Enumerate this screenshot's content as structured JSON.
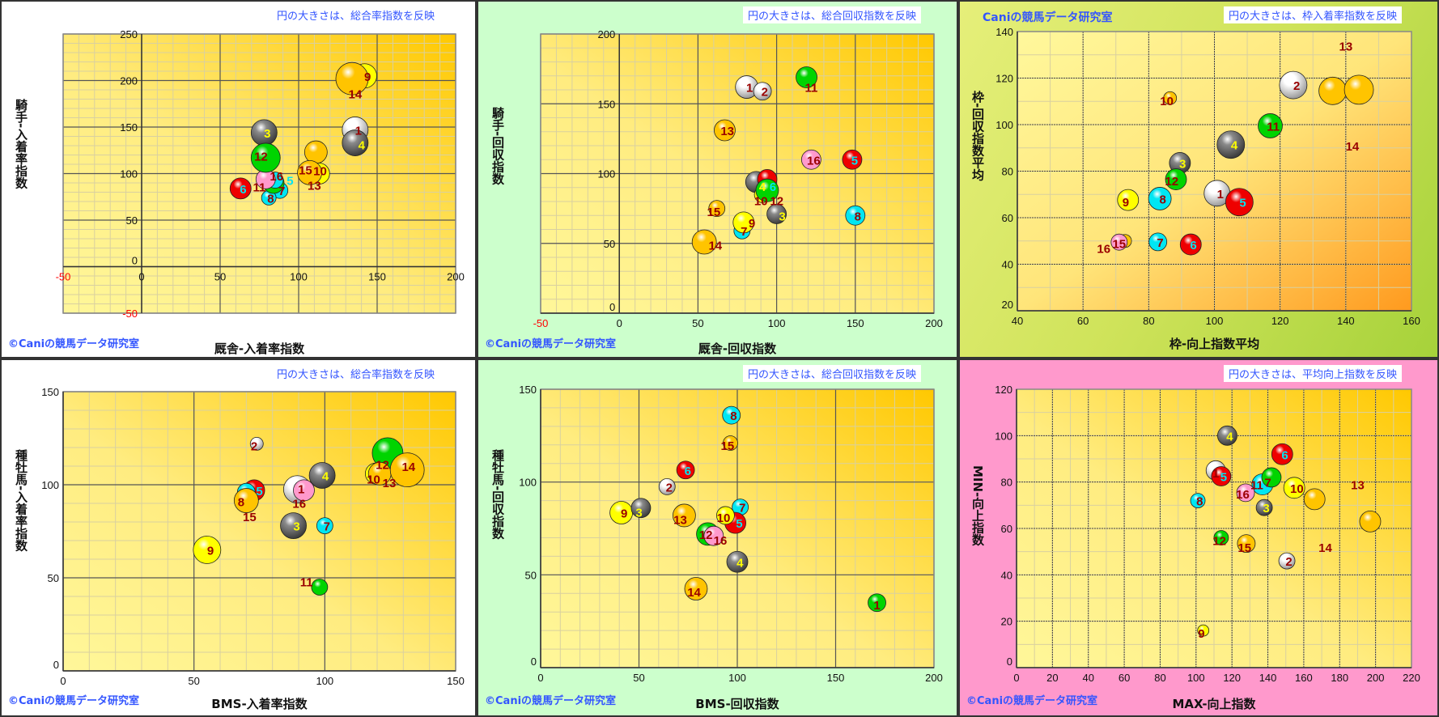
{
  "credit": "©Caniの競馬データ研究室",
  "header_credit": "Caniの競馬データ研究室",
  "colors": {
    "white": "#ffffff",
    "grey": "#8a8a8a",
    "red": "#ee0000",
    "cyan": "#00e6f2",
    "yellow": "#ffff00",
    "green": "#00d400",
    "gold": "#ffc400",
    "pink": "#ff99cc",
    "label_dark": "#990000",
    "label_yellow": "#ffff00",
    "label_cyan": "#00e6f2",
    "note_text": "#3355ff"
  },
  "chart_data": [
    {
      "type": "scatter",
      "size_encoding": "総合率指数",
      "note": "円の大きさは、総合率指数を反映",
      "xlabel": "厩舎-入着率指数",
      "ylabel": "騎手-入着率指数",
      "xlim": [
        -50,
        200
      ],
      "ylim": [
        -50,
        250
      ],
      "xticks": [
        -50,
        0,
        50,
        100,
        150,
        200
      ],
      "yticks": [
        -50,
        0,
        50,
        100,
        150,
        200,
        250
      ],
      "minor": 10,
      "grid": true,
      "points": [
        {
          "n": "1",
          "x": 136,
          "y": 147,
          "s": 16,
          "c": "white"
        },
        {
          "n": "4",
          "x": 136,
          "y": 133,
          "s": 16,
          "c": "grey"
        },
        {
          "n": "9",
          "x": 142,
          "y": 205,
          "s": 15,
          "c": "yellow"
        },
        {
          "n": "14",
          "x": 134,
          "y": 202,
          "s": 20,
          "c": "gold",
          "lx": 136,
          "ly": 186
        },
        {
          "n": "3",
          "x": 78,
          "y": 144,
          "s": 16,
          "c": "grey"
        },
        {
          "n": "13",
          "x": 111,
          "y": 123,
          "s": 14,
          "c": "gold",
          "lx": 110,
          "ly": 88
        },
        {
          "n": "10",
          "x": 113,
          "y": 100,
          "s": 13,
          "c": "yellow"
        },
        {
          "n": "15",
          "x": 107,
          "y": 101,
          "s": 15,
          "c": "gold"
        },
        {
          "n": "7",
          "x": 88,
          "y": 82,
          "s": 10,
          "c": "cyan"
        },
        {
          "n": "8",
          "x": 81,
          "y": 74,
          "s": 9,
          "c": "cyan"
        },
        {
          "n": "16",
          "x": 84,
          "y": 90,
          "s": 13,
          "c": "green",
          "lx": 88,
          "ly": 96
        },
        {
          "n": "5",
          "x": 85,
          "y": 93,
          "s": 10,
          "c": "cyan"
        },
        {
          "n": "11",
          "x": 79,
          "y": 94,
          "s": 12,
          "c": "pink",
          "lx": 77,
          "ly": 88
        },
        {
          "n": "6",
          "x": 63,
          "y": 84,
          "s": 13,
          "c": "red"
        },
        {
          "n": "12",
          "x": 79,
          "y": 117,
          "s": 18,
          "c": "green",
          "lx": 76,
          "ly": 119
        }
      ]
    },
    {
      "type": "scatter",
      "size_encoding": "総合回収指数",
      "note": "円の大きさは、総合回収指数を反映",
      "xlabel": "厩舎-回収指数",
      "ylabel": "騎手-回収指数",
      "xlim": [
        -50,
        200
      ],
      "ylim": [
        0,
        200
      ],
      "xticks": [
        -50,
        0,
        50,
        100,
        150,
        200
      ],
      "yticks": [
        0,
        50,
        100,
        150,
        200
      ],
      "minor": 10,
      "grid": true,
      "points": [
        {
          "n": "1",
          "x": 81,
          "y": 162,
          "s": 14,
          "c": "white"
        },
        {
          "n": "2",
          "x": 91,
          "y": 159,
          "s": 11,
          "c": "white"
        },
        {
          "n": "11",
          "x": 119,
          "y": 169,
          "s": 13,
          "c": "green",
          "lx": 122,
          "ly": 162
        },
        {
          "n": "13",
          "x": 67,
          "y": 131,
          "s": 13,
          "c": "gold"
        },
        {
          "n": "16",
          "x": 122,
          "y": 110,
          "s": 12,
          "c": "pink"
        },
        {
          "n": "5",
          "x": 148,
          "y": 110,
          "s": 12,
          "c": "red"
        },
        {
          "n": "8",
          "x": 150,
          "y": 70,
          "s": 12,
          "c": "cyan"
        },
        {
          "n": "4",
          "x": 87,
          "y": 94,
          "s": 13,
          "c": "grey",
          "lx": 91,
          "ly": 91
        },
        {
          "n": "6",
          "x": 94,
          "y": 96,
          "s": 12,
          "c": "red",
          "lx": 94,
          "ly": 91
        },
        {
          "n": "10",
          "x": 91,
          "y": 85,
          "s": 10,
          "c": "yellow",
          "lx": 88,
          "ly": 86
        },
        {
          "n": "12",
          "x": 94,
          "y": 88,
          "s": 14,
          "c": "green",
          "lx": 98,
          "ly": 82
        },
        {
          "n": "15",
          "x": 62,
          "y": 75,
          "s": 10,
          "c": "gold",
          "lx": 60,
          "ly": 73
        },
        {
          "n": "3",
          "x": 100,
          "y": 71,
          "s": 12,
          "c": "grey"
        },
        {
          "n": "7",
          "x": 78,
          "y": 59,
          "s": 10,
          "c": "cyan"
        },
        {
          "n": "9",
          "x": 79,
          "y": 65,
          "s": 13,
          "c": "yellow"
        },
        {
          "n": "14",
          "x": 54,
          "y": 51,
          "s": 15,
          "c": "gold",
          "lx": 61,
          "ly": 49
        }
      ]
    },
    {
      "type": "scatter",
      "size_encoding": "枠入着率指数",
      "note": "円の大きさは、枠入着率指数を反映",
      "xlabel": "枠-向上指数平均",
      "ylabel": "枠-回収指数平均",
      "xlim": [
        40,
        160
      ],
      "ylim": [
        20,
        140
      ],
      "xticks": [
        40,
        60,
        80,
        100,
        120,
        140,
        160
      ],
      "yticks": [
        20,
        40,
        60,
        80,
        100,
        120,
        140
      ],
      "minor": 10,
      "grid": true,
      "points": [
        {
          "n": "10",
          "x": 86.5,
          "y": 111.4,
          "s": 8,
          "c": "gold",
          "lx": 85.5,
          "ly": 110.5
        },
        {
          "n": "2",
          "x": 124,
          "y": 117,
          "s": 17,
          "c": "white"
        },
        {
          "n": "13",
          "x": 136,
          "y": 114.5,
          "s": 17,
          "c": "gold",
          "lx": 140,
          "ly": 134
        },
        {
          "n": "14",
          "x": 144,
          "y": 115,
          "s": 18,
          "c": "gold",
          "lx": 142,
          "ly": 91
        },
        {
          "n": "11",
          "x": 117,
          "y": 99.5,
          "s": 15,
          "c": "green"
        },
        {
          "n": "4",
          "x": 105,
          "y": 91.4,
          "s": 17,
          "c": "grey"
        },
        {
          "n": "3",
          "x": 89.5,
          "y": 83.5,
          "s": 13,
          "c": "grey"
        },
        {
          "n": "12",
          "x": 88.3,
          "y": 76.5,
          "s": 13,
          "c": "green",
          "lx": 87,
          "ly": 76
        },
        {
          "n": "9",
          "x": 73.7,
          "y": 67.6,
          "s": 13,
          "c": "yellow",
          "lx": 73,
          "ly": 67
        },
        {
          "n": "8",
          "x": 83.4,
          "y": 68.2,
          "s": 14,
          "c": "cyan"
        },
        {
          "n": "1",
          "x": 100.8,
          "y": 70.5,
          "s": 16,
          "c": "white"
        },
        {
          "n": "5",
          "x": 107.6,
          "y": 66.7,
          "s": 17,
          "c": "red"
        },
        {
          "n": "15",
          "x": 72.8,
          "y": 50,
          "s": 8,
          "c": "gold",
          "lx": 71,
          "ly": 49
        },
        {
          "n": "16",
          "x": 71,
          "y": 49.5,
          "s": 10,
          "c": "pink",
          "lx": 70,
          "ly": 49
        },
        {
          "n": "7",
          "x": 82.8,
          "y": 49.6,
          "s": 11,
          "c": "cyan"
        },
        {
          "n": "6",
          "x": 92.8,
          "y": 48.5,
          "s": 13,
          "c": "red"
        }
      ]
    },
    {
      "type": "scatter",
      "size_encoding": "総合率指数",
      "note": "円の大きさは、総合率指数を反映",
      "xlabel": "BMS-入着率指数",
      "ylabel": "種牡馬-入着率指数",
      "xlim": [
        0,
        150
      ],
      "ylim": [
        0,
        150
      ],
      "xticks": [
        0,
        50,
        100,
        150
      ],
      "yticks": [
        0,
        50,
        100,
        150
      ],
      "minor": 10,
      "grid": true,
      "points": [
        {
          "n": "2",
          "x": 74,
          "y": 122,
          "s": 8,
          "c": "white",
          "lx": 73,
          "ly": 121
        },
        {
          "n": "12",
          "x": 124,
          "y": 117,
          "s": 19,
          "c": "green",
          "lx": 122,
          "ly": 111
        },
        {
          "n": "10",
          "x": 119.5,
          "y": 106,
          "s": 13,
          "c": "yellow",
          "lx": 118,
          "ly": 105
        },
        {
          "n": "13",
          "x": 121,
          "y": 106,
          "s": 14,
          "c": "gold",
          "lx": 120,
          "ly": 104
        },
        {
          "n": "14",
          "x": 131.5,
          "y": 108,
          "s": 21,
          "c": "gold",
          "lx": 132,
          "ly": 110
        },
        {
          "n": "4",
          "x": 99,
          "y": 105,
          "s": 16,
          "c": "grey"
        },
        {
          "n": "1",
          "x": 89.5,
          "y": 97.5,
          "s": 17,
          "c": "white",
          "lx": 91,
          "ly": 98
        },
        {
          "n": "16",
          "x": 92,
          "y": 97,
          "s": 13,
          "c": "pink",
          "lx": 89,
          "ly": 91
        },
        {
          "n": "5",
          "x": 73,
          "y": 97,
          "s": 13,
          "c": "red",
          "lx": 75,
          "ly": 97
        },
        {
          "n": "8",
          "x": 70,
          "y": 96,
          "s": 11,
          "c": "cyan",
          "lx": 68,
          "ly": 91
        },
        {
          "n": "15",
          "x": 70,
          "y": 91.5,
          "s": 15,
          "c": "gold",
          "lx": 70,
          "ly": 84
        },
        {
          "n": "3",
          "x": 88,
          "y": 78,
          "s": 16,
          "c": "grey"
        },
        {
          "n": "7",
          "x": 100,
          "y": 78,
          "s": 10,
          "c": "cyan"
        },
        {
          "n": "9",
          "x": 55,
          "y": 65,
          "s": 17,
          "c": "yellow"
        },
        {
          "n": "11",
          "x": 98,
          "y": 45,
          "s": 10,
          "c": "green",
          "lx": 93,
          "ly": 48
        }
      ]
    },
    {
      "type": "scatter",
      "size_encoding": "総合回収指数",
      "note": "円の大きさは、総合回収指数を反映",
      "xlabel": "BMS-回収指数",
      "ylabel": "種牡馬-回収指数",
      "xlim": [
        0,
        200
      ],
      "ylim": [
        0,
        150
      ],
      "xticks": [
        0,
        50,
        100,
        150,
        200
      ],
      "yticks": [
        0,
        50,
        100,
        150
      ],
      "minor": 10,
      "grid": true,
      "points": [
        {
          "n": "8",
          "x": 97,
          "y": 136,
          "s": 11,
          "c": "cyan"
        },
        {
          "n": "15",
          "x": 96.5,
          "y": 121,
          "s": 9,
          "c": "gold",
          "lx": 95,
          "ly": 120
        },
        {
          "n": "6",
          "x": 73.7,
          "y": 106.5,
          "s": 11,
          "c": "red"
        },
        {
          "n": "2",
          "x": 64.3,
          "y": 97.5,
          "s": 10,
          "c": "white"
        },
        {
          "n": "9",
          "x": 41,
          "y": 83.5,
          "s": 14,
          "c": "yellow"
        },
        {
          "n": "3",
          "x": 51,
          "y": 86,
          "s": 12,
          "c": "grey",
          "lx": 50,
          "ly": 84
        },
        {
          "n": "13",
          "x": 73,
          "y": 82,
          "s": 14,
          "c": "gold",
          "lx": 71,
          "ly": 80
        },
        {
          "n": "7",
          "x": 101.5,
          "y": 86.5,
          "s": 10,
          "c": "cyan"
        },
        {
          "n": "5",
          "x": 99,
          "y": 78,
          "s": 13,
          "c": "red",
          "lx": 101,
          "ly": 78
        },
        {
          "n": "10",
          "x": 94,
          "y": 82,
          "s": 11,
          "c": "yellow",
          "lx": 93,
          "ly": 81
        },
        {
          "n": "12",
          "x": 85,
          "y": 72,
          "s": 14,
          "c": "green",
          "lx": 84,
          "ly": 72
        },
        {
          "n": "16",
          "x": 88,
          "y": 71,
          "s": 12,
          "c": "pink",
          "lx": 86,
          "ly": 69
        },
        {
          "n": "4",
          "x": 100,
          "y": 57,
          "s": 13,
          "c": "grey"
        },
        {
          "n": "14",
          "x": 79,
          "y": 42.5,
          "s": 14,
          "c": "gold",
          "lx": 78,
          "ly": 41
        },
        {
          "n": "1",
          "x": 171,
          "y": 35,
          "s": 11,
          "c": "green",
          "lx": 171,
          "ly": 34
        }
      ]
    },
    {
      "type": "scatter",
      "size_encoding": "平均向上指数",
      "note": "円の大きさは、平均向上指数を反映",
      "xlabel": "MAX-向上指数",
      "ylabel": "MIN-向上指数",
      "xlim": [
        0,
        220
      ],
      "ylim": [
        0,
        120
      ],
      "xticks": [
        0,
        20,
        40,
        60,
        80,
        100,
        120,
        140,
        160,
        180,
        200,
        220
      ],
      "yticks": [
        0,
        20,
        40,
        60,
        80,
        100,
        120
      ],
      "minor": 10,
      "grid": true,
      "points": [
        {
          "n": "4",
          "x": 117.4,
          "y": 100,
          "s": 12,
          "c": "grey"
        },
        {
          "n": "6",
          "x": 148,
          "y": 92,
          "s": 13,
          "c": "red"
        },
        {
          "n": "1",
          "x": 111,
          "y": 85,
          "s": 12,
          "c": "white",
          "lx": 111,
          "ly": 84
        },
        {
          "n": "5",
          "x": 114,
          "y": 82.5,
          "s": 12,
          "c": "red"
        },
        {
          "n": "7",
          "x": 137,
          "y": 79,
          "s": 13,
          "c": "cyan",
          "lx": 140,
          "ly": 80
        },
        {
          "n": "11",
          "x": 142,
          "y": 82,
          "s": 12,
          "c": "green",
          "lx": 137,
          "ly": 79
        },
        {
          "n": "16",
          "x": 127.6,
          "y": 75.4,
          "s": 11,
          "c": "pink",
          "lx": 126,
          "ly": 75
        },
        {
          "n": "3",
          "x": 138,
          "y": 69,
          "s": 10,
          "c": "grey"
        },
        {
          "n": "8",
          "x": 101,
          "y": 72,
          "s": 9,
          "c": "cyan"
        },
        {
          "n": "10",
          "x": 154.7,
          "y": 77.5,
          "s": 13,
          "c": "yellow"
        },
        {
          "n": "13",
          "x": 166,
          "y": 72.6,
          "s": 13,
          "c": "gold",
          "lx": 190,
          "ly": 79
        },
        {
          "n": "14",
          "x": 197,
          "y": 63,
          "s": 13,
          "c": "gold",
          "lx": 172,
          "ly": 52
        },
        {
          "n": "12",
          "x": 114,
          "y": 56,
          "s": 9,
          "c": "green",
          "lx": 113,
          "ly": 55
        },
        {
          "n": "15",
          "x": 128,
          "y": 53.5,
          "s": 11,
          "c": "gold",
          "lx": 127,
          "ly": 52
        },
        {
          "n": "2",
          "x": 150.6,
          "y": 46,
          "s": 10,
          "c": "white"
        },
        {
          "n": "9",
          "x": 104,
          "y": 16,
          "s": 7,
          "c": "yellow",
          "lx": 103,
          "ly": 15
        }
      ]
    }
  ]
}
